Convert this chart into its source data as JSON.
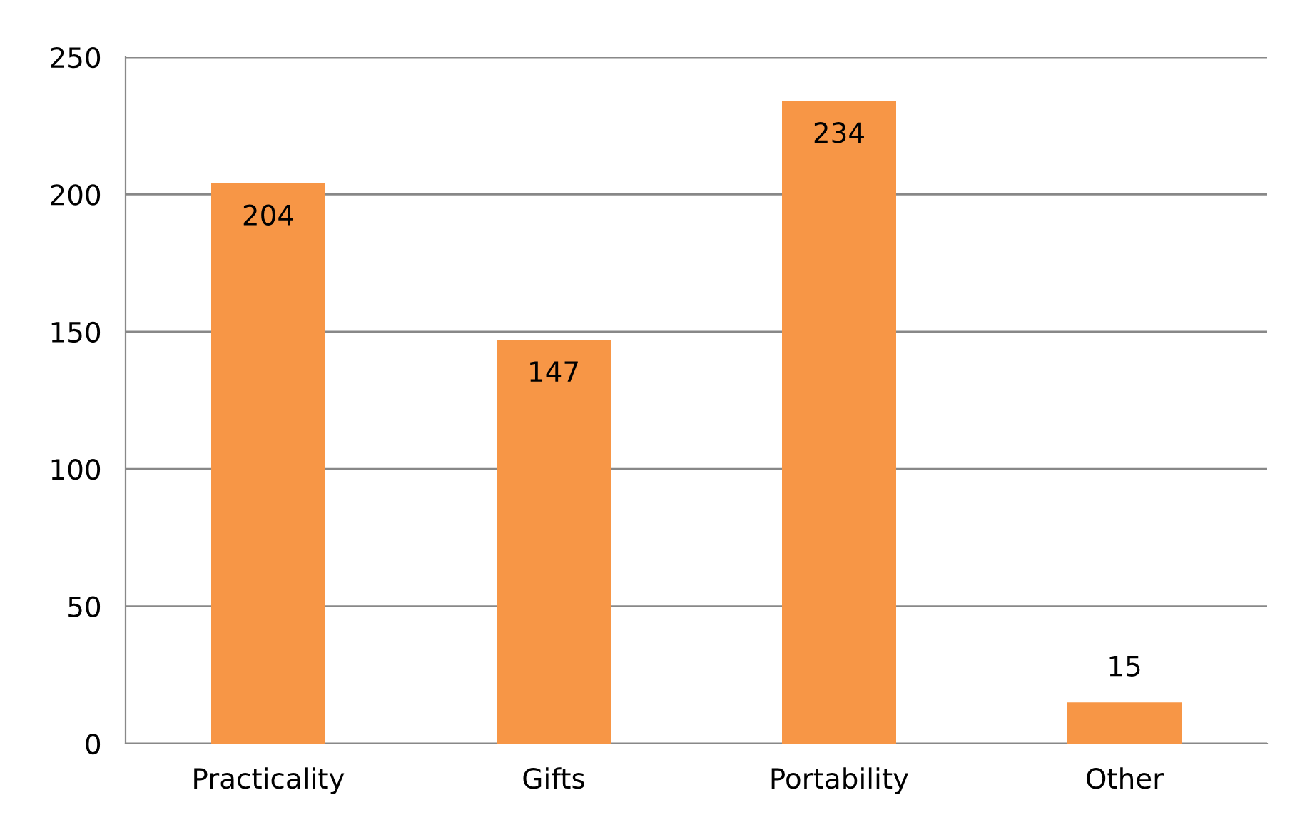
{
  "chart_data": {
    "type": "bar",
    "categories": [
      "Practicality",
      "Gifts",
      "Portability",
      "Other"
    ],
    "values": [
      204,
      147,
      234,
      15
    ],
    "color": "#f79646",
    "ylim": [
      0,
      250
    ],
    "yticks": [
      0,
      50,
      100,
      150,
      200,
      250
    ],
    "grid": "y",
    "data_labels": true
  }
}
